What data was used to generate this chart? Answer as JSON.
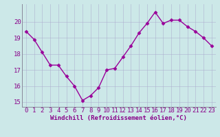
{
  "x": [
    0,
    1,
    2,
    3,
    4,
    5,
    6,
    7,
    8,
    9,
    10,
    11,
    12,
    13,
    14,
    15,
    16,
    17,
    18,
    19,
    20,
    21,
    22,
    23
  ],
  "y": [
    19.4,
    18.9,
    18.1,
    17.3,
    17.3,
    16.6,
    16.0,
    15.1,
    15.4,
    15.9,
    17.0,
    17.1,
    17.8,
    18.5,
    19.3,
    19.9,
    20.6,
    19.9,
    20.1,
    20.1,
    19.7,
    19.4,
    19.0,
    18.5
  ],
  "line_color": "#990099",
  "marker": "D",
  "marker_size": 2.5,
  "bg_color": "#cce8e8",
  "grid_color": "#aaaacc",
  "xlabel": "Windchill (Refroidissement éolien,°C)",
  "xlim": [
    -0.5,
    23.5
  ],
  "ylim": [
    14.7,
    21.1
  ],
  "yticks": [
    15,
    16,
    17,
    18,
    19,
    20
  ],
  "xticks": [
    0,
    1,
    2,
    3,
    4,
    5,
    6,
    7,
    8,
    9,
    10,
    11,
    12,
    13,
    14,
    15,
    16,
    17,
    18,
    19,
    20,
    21,
    22,
    23
  ],
  "xlabel_fontsize": 6.5,
  "tick_fontsize": 6.5,
  "line_width": 1.0,
  "text_color": "#880088"
}
